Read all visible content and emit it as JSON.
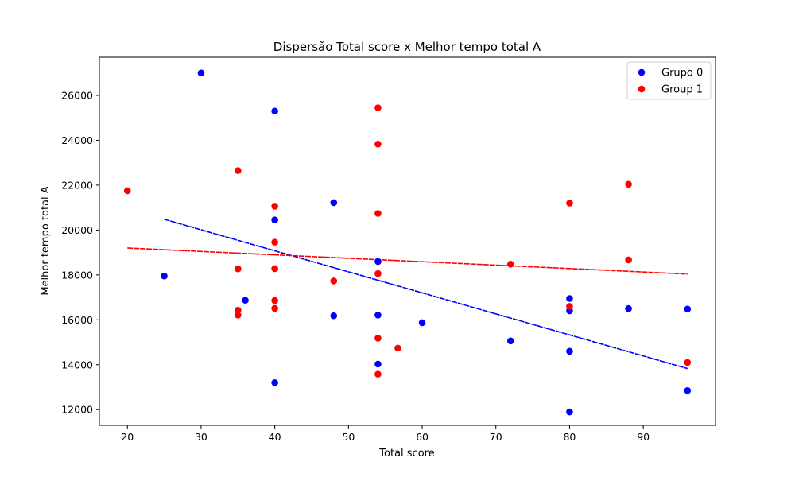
{
  "chart_data": {
    "type": "scatter",
    "title": "Dispersão Total score x Melhor tempo total A",
    "xlabel": "Total score",
    "ylabel": "Melhor tempo total A",
    "xlim": [
      16.2,
      99.8
    ],
    "ylim": [
      11300,
      27700
    ],
    "xticks": [
      20,
      30,
      40,
      50,
      60,
      70,
      80,
      90
    ],
    "yticks": [
      12000,
      14000,
      16000,
      18000,
      20000,
      22000,
      24000,
      26000
    ],
    "grid": false,
    "legend_position": "top-right",
    "series": [
      {
        "name": "Grupo 0",
        "color": "#0000ff",
        "points": [
          [
            25,
            17950
          ],
          [
            30,
            27000
          ],
          [
            36,
            16870
          ],
          [
            40,
            25300
          ],
          [
            40,
            20450
          ],
          [
            40,
            13200
          ],
          [
            48,
            21220
          ],
          [
            48,
            16180
          ],
          [
            54,
            18600
          ],
          [
            54,
            16210
          ],
          [
            54,
            14030
          ],
          [
            60,
            15870
          ],
          [
            72,
            15060
          ],
          [
            80,
            16950
          ],
          [
            80,
            16400
          ],
          [
            80,
            14600
          ],
          [
            80,
            11900
          ],
          [
            88,
            16500
          ],
          [
            96,
            16480
          ],
          [
            96,
            12850
          ]
        ],
        "trendline": {
          "x": [
            25,
            96
          ],
          "y": [
            20480,
            13830
          ]
        }
      },
      {
        "name": "Group 1",
        "color": "#ff0000",
        "points": [
          [
            20,
            21750
          ],
          [
            35,
            22650
          ],
          [
            35,
            18270
          ],
          [
            35,
            16430
          ],
          [
            35,
            16210
          ],
          [
            40,
            21060
          ],
          [
            40,
            19460
          ],
          [
            40,
            18280
          ],
          [
            40,
            16860
          ],
          [
            40,
            16510
          ],
          [
            48,
            17730
          ],
          [
            54,
            25450
          ],
          [
            54,
            23830
          ],
          [
            54,
            20740
          ],
          [
            54,
            18060
          ],
          [
            54,
            15180
          ],
          [
            54,
            13580
          ],
          [
            56.7,
            14740
          ],
          [
            72,
            18480
          ],
          [
            80,
            21200
          ],
          [
            80,
            16600
          ],
          [
            88,
            22040
          ],
          [
            88,
            18670
          ],
          [
            96,
            14100
          ]
        ],
        "trendline": {
          "x": [
            20,
            96
          ],
          "y": [
            19200,
            18040
          ]
        }
      }
    ]
  }
}
